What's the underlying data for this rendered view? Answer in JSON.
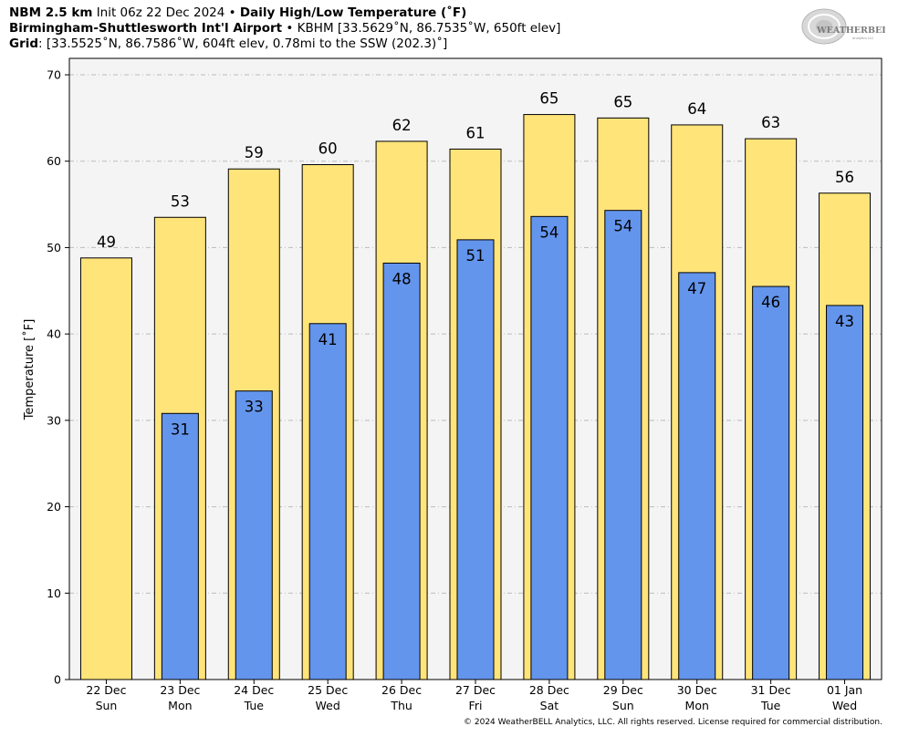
{
  "header": {
    "model": "NBM 2.5 km",
    "init": "Init 06z 22 Dec 2024",
    "sep": "•",
    "product": "Daily High/Low Temperature (˚F)",
    "location_name": "Birmingham-Shuttlesworth Int'l Airport",
    "location_detail": "KBHM [33.5629˚N, 86.7535˚W, 650ft elev]",
    "grid_label": "Grid",
    "grid_detail": ": [33.5525˚N, 86.7586˚W, 604ft elev, 0.78mi to the SSW (202.3)˚]"
  },
  "logo": {
    "text_main": "WEATHERBELL",
    "text_sub": "Analytics LLC"
  },
  "footer": {
    "copyright": "© 2024 WeatherBELL Analytics, LLC. All rights reserved. License required for commercial distribution."
  },
  "colors": {
    "high": "#FFE47A",
    "low": "#6495ED",
    "plot_bg": "#F4F4F4",
    "grid": "#BBBBBB"
  },
  "chart_data": {
    "type": "bar",
    "title": "Daily High/Low Temperature (˚F)",
    "xlabel": "",
    "ylabel": "Temperature [˚F]",
    "ylim": [
      0,
      70
    ],
    "yticks": [
      0,
      10,
      20,
      30,
      40,
      50,
      60,
      70
    ],
    "grid": true,
    "categories": [
      {
        "date": "22 Dec",
        "day": "Sun"
      },
      {
        "date": "23 Dec",
        "day": "Mon"
      },
      {
        "date": "24 Dec",
        "day": "Tue"
      },
      {
        "date": "25 Dec",
        "day": "Wed"
      },
      {
        "date": "26 Dec",
        "day": "Thu"
      },
      {
        "date": "27 Dec",
        "day": "Fri"
      },
      {
        "date": "28 Dec",
        "day": "Sat"
      },
      {
        "date": "29 Dec",
        "day": "Sun"
      },
      {
        "date": "30 Dec",
        "day": "Mon"
      },
      {
        "date": "31 Dec",
        "day": "Tue"
      },
      {
        "date": "01 Jan",
        "day": "Wed"
      }
    ],
    "series": [
      {
        "values": [
          48.8,
          53.5,
          59.1,
          59.6,
          62.3,
          61.4,
          65.4,
          65.0,
          64.2,
          62.6,
          56.3
        ],
        "labels": [
          "49",
          "53",
          "59",
          "60",
          "62",
          "61",
          "65",
          "65",
          "64",
          "63",
          "56"
        ]
      },
      {
        "values": [
          null,
          30.8,
          33.4,
          41.2,
          48.2,
          50.9,
          53.6,
          54.3,
          47.1,
          45.5,
          43.3
        ],
        "labels": [
          "",
          "31",
          "33",
          "41",
          "48",
          "51",
          "54",
          "54",
          "47",
          "46",
          "43"
        ]
      }
    ]
  }
}
